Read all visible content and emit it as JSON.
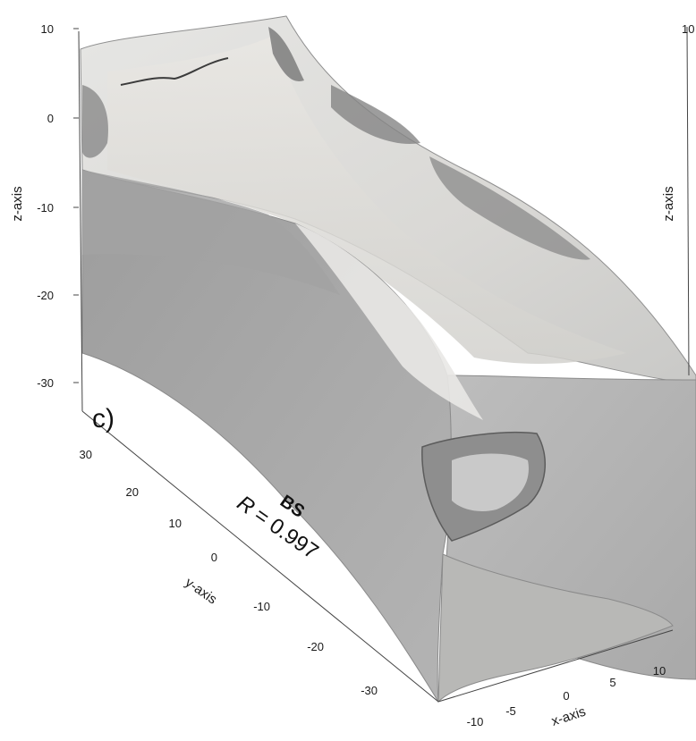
{
  "figure": {
    "panel_label": "c)",
    "method_label": "BS",
    "r_prefix": "R",
    "r_value": "= 0.997",
    "axes": {
      "z": {
        "label": "z-axis",
        "ticks": [
          "10",
          "0",
          "-10",
          "-20",
          "-30"
        ]
      },
      "y": {
        "label": "y-axis",
        "ticks": [
          "30",
          "20",
          "10",
          "0",
          "-10",
          "-20",
          "-30"
        ]
      },
      "x": {
        "label": "x-axis",
        "ticks": [
          "-10",
          "-5",
          "0",
          "5",
          "10"
        ]
      }
    },
    "neighbor_panel": {
      "z_label": "z-axis",
      "z_tick_fragment": "10"
    }
  }
}
